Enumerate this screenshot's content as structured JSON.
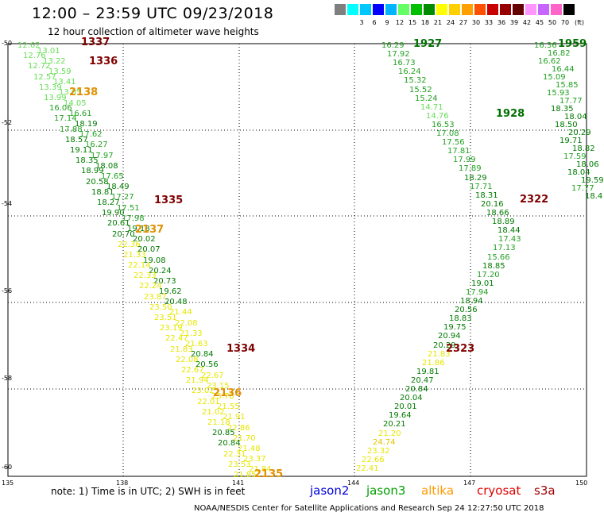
{
  "title": "12:00 – 23:59 UTC 09/23/2018",
  "subtitle": "12 hour collection of altimeter wave heights",
  "scale": {
    "unit": "(ft)",
    "bins": [
      {
        "label": "",
        "color": "#7f7f7f"
      },
      {
        "label": "3",
        "color": "#00ffff"
      },
      {
        "label": "6",
        "color": "#00c8ff"
      },
      {
        "label": "9",
        "color": "#0000ff"
      },
      {
        "label": "12",
        "color": "#00b4ff"
      },
      {
        "label": "15",
        "color": "#64ff64"
      },
      {
        "label": "18",
        "color": "#00c000"
      },
      {
        "label": "21",
        "color": "#008c00"
      },
      {
        "label": "24",
        "color": "#ffff00"
      },
      {
        "label": "27",
        "color": "#ffd000"
      },
      {
        "label": "30",
        "color": "#ffa000"
      },
      {
        "label": "33",
        "color": "#ff5000"
      },
      {
        "label": "36",
        "color": "#c80000"
      },
      {
        "label": "39",
        "color": "#960000"
      },
      {
        "label": "42",
        "color": "#640000"
      },
      {
        "label": "45",
        "color": "#ff96ff"
      },
      {
        "label": "50",
        "color": "#c864ff"
      },
      {
        "label": "70",
        "color": "#ff64c8"
      },
      {
        "label": "",
        "color": "#000000"
      }
    ]
  },
  "axes": {
    "lat_labels": [
      "-50",
      "-52",
      "-54",
      "-56",
      "-58",
      "-60"
    ],
    "lon_labels": [
      "135",
      "138",
      "141",
      "144",
      "147",
      "150"
    ]
  },
  "passes": [
    {
      "label": "1337",
      "color": "#800000"
    },
    {
      "label": "1336",
      "color": "#800000"
    },
    {
      "label": "1335",
      "color": "#800000"
    },
    {
      "label": "1334",
      "color": "#800000"
    },
    {
      "label": "1927",
      "color": "#007000"
    },
    {
      "label": "1928",
      "color": "#007000"
    },
    {
      "label": "1959",
      "color": "#007000"
    },
    {
      "label": "2322",
      "color": "#800000"
    },
    {
      "label": "2323",
      "color": "#800000"
    },
    {
      "label": "2138",
      "color": "#e09000"
    },
    {
      "label": "2136",
      "color": "#e09000"
    },
    {
      "label": "2135",
      "color": "#e09000"
    },
    {
      "label": "2137",
      "color": "#e09000"
    }
  ],
  "swh_readings": {
    "track_a": [
      "12.62",
      "13.01",
      "12.76",
      "13.22",
      "12.72",
      "13.59",
      "12.57",
      "13.41",
      "13.39",
      "13.05",
      "13.99",
      "14.05",
      "16.06",
      "16.61",
      "17.14",
      "18.19",
      "17.88",
      "17.62",
      "18.57",
      "16.27",
      "19.11",
      "17.97",
      "18.35",
      "18.08",
      "18.99",
      "17.65",
      "20.58",
      "18.49",
      "18.81",
      "17.27",
      "18.27",
      "17.51",
      "19.90",
      "17.98",
      "20.61",
      "19.18",
      "20.70",
      "20.02",
      "22.36",
      "20.07",
      "21.33",
      "19.08",
      "22.14",
      "20.24",
      "22.33",
      "20.73",
      "22.24",
      "19.62",
      "23.87",
      "20.48",
      "23.50",
      "21.44",
      "23.51",
      "22.08",
      "23.19",
      "21.33",
      "22.47",
      "21.63",
      "21.83",
      "20.84",
      "22.08",
      "20.56",
      "22.67",
      "22.67",
      "21.94",
      "23.15",
      "23.02",
      "23.78",
      "22.01",
      "21.55",
      "21.02",
      "21.91",
      "21.18",
      "22.86",
      "20.85",
      "21.70",
      "20.84",
      "21.48",
      "22.31",
      "23.37",
      "23.53",
      "21.84",
      "21.85"
    ],
    "track_b": [
      "16.29",
      "17.92",
      "16.73",
      "16.24",
      "15.32",
      "15.52",
      "15.24",
      "14.71",
      "14.76",
      "16.53",
      "17.08",
      "17.56",
      "17.81",
      "17.99",
      "17.89",
      "18.29",
      "17.71",
      "18.31",
      "20.16",
      "18.66",
      "18.89",
      "18.44",
      "17.43",
      "17.13",
      "15.66",
      "18.85",
      "17.20",
      "19.01",
      "17.94",
      "18.94",
      "20.56",
      "18.83",
      "19.75",
      "20.94",
      "20.29",
      "21.83",
      "21.86",
      "19.81",
      "20.47",
      "20.84",
      "20.04",
      "20.01",
      "19.64",
      "20.21",
      "21.20",
      "24.74",
      "23.32",
      "22.66",
      "22.41"
    ],
    "track_c": [
      "16.36",
      "16.82",
      "16.62",
      "16.44",
      "15.09",
      "15.85",
      "15.93",
      "17.77",
      "18.35",
      "18.04",
      "18.50",
      "20.29",
      "19.71",
      "18.82",
      "17.59",
      "18.06",
      "18.04",
      "19.59",
      "17.77",
      "18.4"
    ]
  },
  "note": "note: 1) Time is in UTC; 2) SWH is in feet",
  "satellites": [
    {
      "label": "jason2",
      "color": "#0000e0"
    },
    {
      "label": "jason3",
      "color": "#00a000"
    },
    {
      "label": "altika",
      "color": "#ff9a00"
    },
    {
      "label": "cryosat",
      "color": "#e00000"
    },
    {
      "label": "s3a",
      "color": "#a00000"
    }
  ],
  "credit": "NOAA/NESDIS Center for Satellite Applications and Research    Sep 24 12:27:50 UTC 2018"
}
